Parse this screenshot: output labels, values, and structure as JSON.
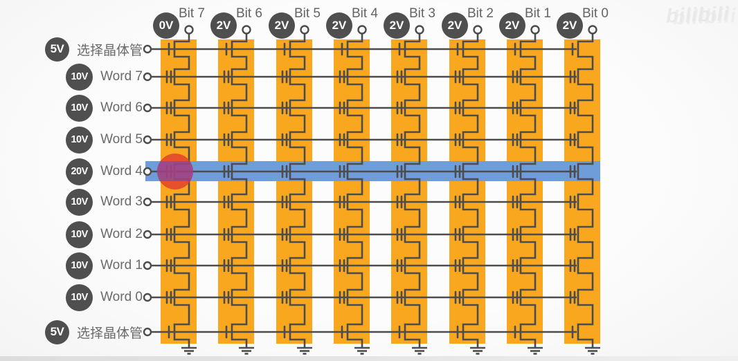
{
  "watermark": "bilibili",
  "bit_lines": [
    {
      "name": "Bit 7",
      "voltage": "0V"
    },
    {
      "name": "Bit 6",
      "voltage": "2V"
    },
    {
      "name": "Bit 5",
      "voltage": "2V"
    },
    {
      "name": "Bit 4",
      "voltage": "2V"
    },
    {
      "name": "Bit 3",
      "voltage": "2V"
    },
    {
      "name": "Bit 2",
      "voltage": "2V"
    },
    {
      "name": "Bit 1",
      "voltage": "2V"
    },
    {
      "name": "Bit 0",
      "voltage": "2V"
    }
  ],
  "word_lines": [
    {
      "name": "选择晶体管",
      "voltage": "5V",
      "type": "select_gate",
      "highlighted": false
    },
    {
      "name": "Word 7",
      "voltage": "10V",
      "type": "word",
      "highlighted": false
    },
    {
      "name": "Word 6",
      "voltage": "10V",
      "type": "word",
      "highlighted": false
    },
    {
      "name": "Word 5",
      "voltage": "10V",
      "type": "word",
      "highlighted": false
    },
    {
      "name": "Word 4",
      "voltage": "20V",
      "type": "word",
      "highlighted": true
    },
    {
      "name": "Word 3",
      "voltage": "10V",
      "type": "word",
      "highlighted": false
    },
    {
      "name": "Word 2",
      "voltage": "10V",
      "type": "word",
      "highlighted": false
    },
    {
      "name": "Word 1",
      "voltage": "10V",
      "type": "word",
      "highlighted": false
    },
    {
      "name": "Word 0",
      "voltage": "10V",
      "type": "word",
      "highlighted": false
    },
    {
      "name": "选择晶体管",
      "voltage": "5V",
      "type": "select_gate",
      "highlighted": false
    }
  ],
  "selected_cell": {
    "word_line": "Word 4",
    "bit_line": "Bit 7"
  },
  "colors": {
    "string_strip": "#F9A71E",
    "circuit_line": "#4C4C4C",
    "voltage_badge": "#4F4F4F",
    "label_text": "#6A6A6A",
    "wordline_highlight": "#6F9DD9",
    "selected_cell_marker": "rgba(223,60,45,0.8)",
    "selected_cell_overlap": "rgba(110,70,205,0.48)",
    "watermark": "#E9E9E9"
  }
}
